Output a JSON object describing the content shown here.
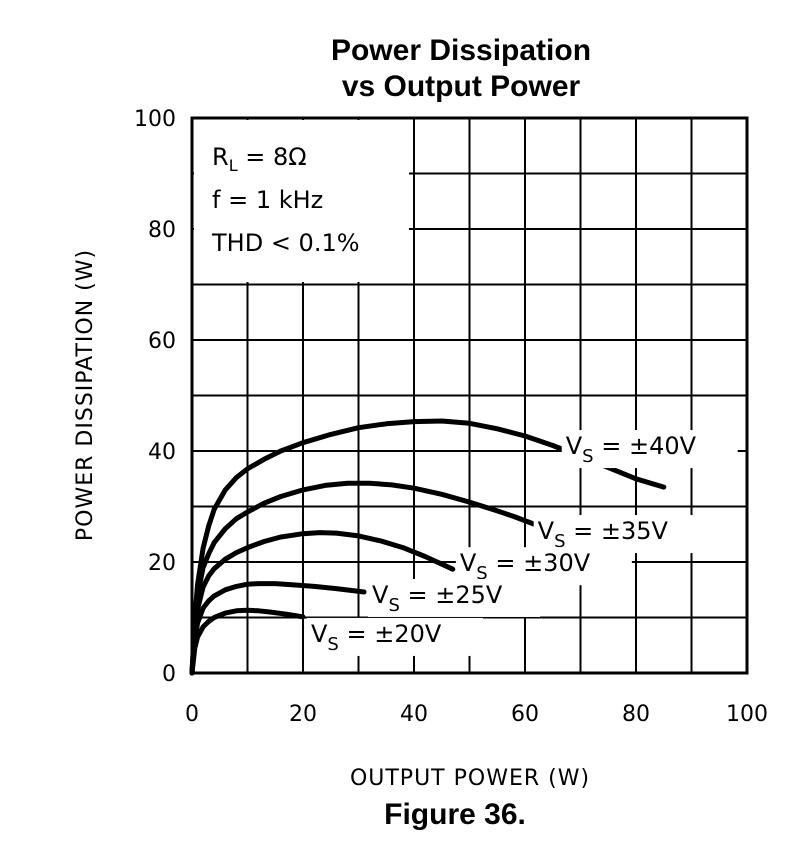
{
  "chart_data": {
    "type": "line",
    "title_line1": "Power Dissipation",
    "title_line2": "vs Output Power",
    "xlabel": "OUTPUT POWER (W)",
    "ylabel": "POWER DISSIPATION (W)",
    "xlim": [
      0,
      100
    ],
    "ylim": [
      0,
      100
    ],
    "xticks": [
      "0",
      "20",
      "40",
      "60",
      "80",
      "100"
    ],
    "yticks": [
      "0",
      "20",
      "40",
      "60",
      "80",
      "100"
    ],
    "grid": true,
    "conditions": {
      "rl_prefix": "R",
      "rl_subscript": "L",
      "rl_value": " = 8Ω",
      "freq": "f = 1 kHz",
      "thd": "THD < 0.1%"
    },
    "series": [
      {
        "name": "±40V",
        "label_prefix": "V",
        "label_sub": "S",
        "label_value": " = ±40V",
        "x": [
          0,
          0.5,
          1,
          2,
          3,
          4,
          6,
          8,
          10,
          13,
          16,
          20,
          25,
          30,
          35,
          40,
          45,
          50,
          55,
          60,
          65,
          70,
          75,
          80,
          85
        ],
        "y": [
          0,
          10,
          16,
          22.5,
          26.5,
          29.5,
          33,
          35.2,
          36.8,
          38.5,
          40,
          41.5,
          43,
          44.2,
          44.9,
          45.3,
          45.4,
          45,
          44,
          42.7,
          41,
          39,
          37,
          35,
          33.5
        ]
      },
      {
        "name": "±35V",
        "label_prefix": "V",
        "label_sub": "S",
        "label_value": " = ±35V",
        "x": [
          0,
          0.5,
          1,
          2,
          3,
          4,
          6,
          8,
          10,
          13,
          16,
          20,
          24,
          28,
          32,
          36,
          40,
          45,
          50,
          55,
          58,
          63
        ],
        "y": [
          0,
          9,
          14,
          19,
          21.5,
          23.5,
          26,
          27.8,
          29,
          30.6,
          31.8,
          33,
          33.8,
          34.2,
          34.2,
          33.9,
          33.3,
          32.2,
          30.8,
          29.2,
          28.2,
          26.3
        ]
      },
      {
        "name": "±30V",
        "label_prefix": "V",
        "label_sub": "S",
        "label_value": " = ±30V",
        "x": [
          0,
          0.5,
          1,
          2,
          3,
          4,
          6,
          8,
          10,
          13,
          16,
          20,
          23,
          26,
          30,
          34,
          38,
          42,
          47
        ],
        "y": [
          0,
          7.5,
          11.5,
          15.5,
          17.5,
          18.8,
          20.5,
          21.7,
          22.6,
          23.7,
          24.5,
          25.1,
          25.3,
          25.2,
          24.7,
          23.8,
          22.6,
          21,
          18.7
        ]
      },
      {
        "name": "±25V",
        "label_prefix": "V",
        "label_sub": "S",
        "label_value": " = ±25V",
        "x": [
          0,
          0.5,
          1,
          2,
          3,
          4,
          6,
          8,
          10,
          12,
          15,
          18,
          22,
          26,
          31
        ],
        "y": [
          0,
          6,
          9,
          11.7,
          13,
          13.9,
          15,
          15.6,
          16,
          16.1,
          16.1,
          15.9,
          15.6,
          15.2,
          14.6
        ]
      },
      {
        "name": "±20V",
        "label_prefix": "V",
        "label_sub": "S",
        "label_value": " = ±20V",
        "x": [
          0,
          0.5,
          1,
          2,
          3,
          4,
          6,
          8,
          10,
          12,
          14,
          17,
          20
        ],
        "y": [
          0,
          4.5,
          6.5,
          8.3,
          9.3,
          10,
          10.8,
          11.2,
          11.3,
          11.2,
          11,
          10.6,
          10.1
        ]
      }
    ]
  },
  "caption": "Figure 36."
}
